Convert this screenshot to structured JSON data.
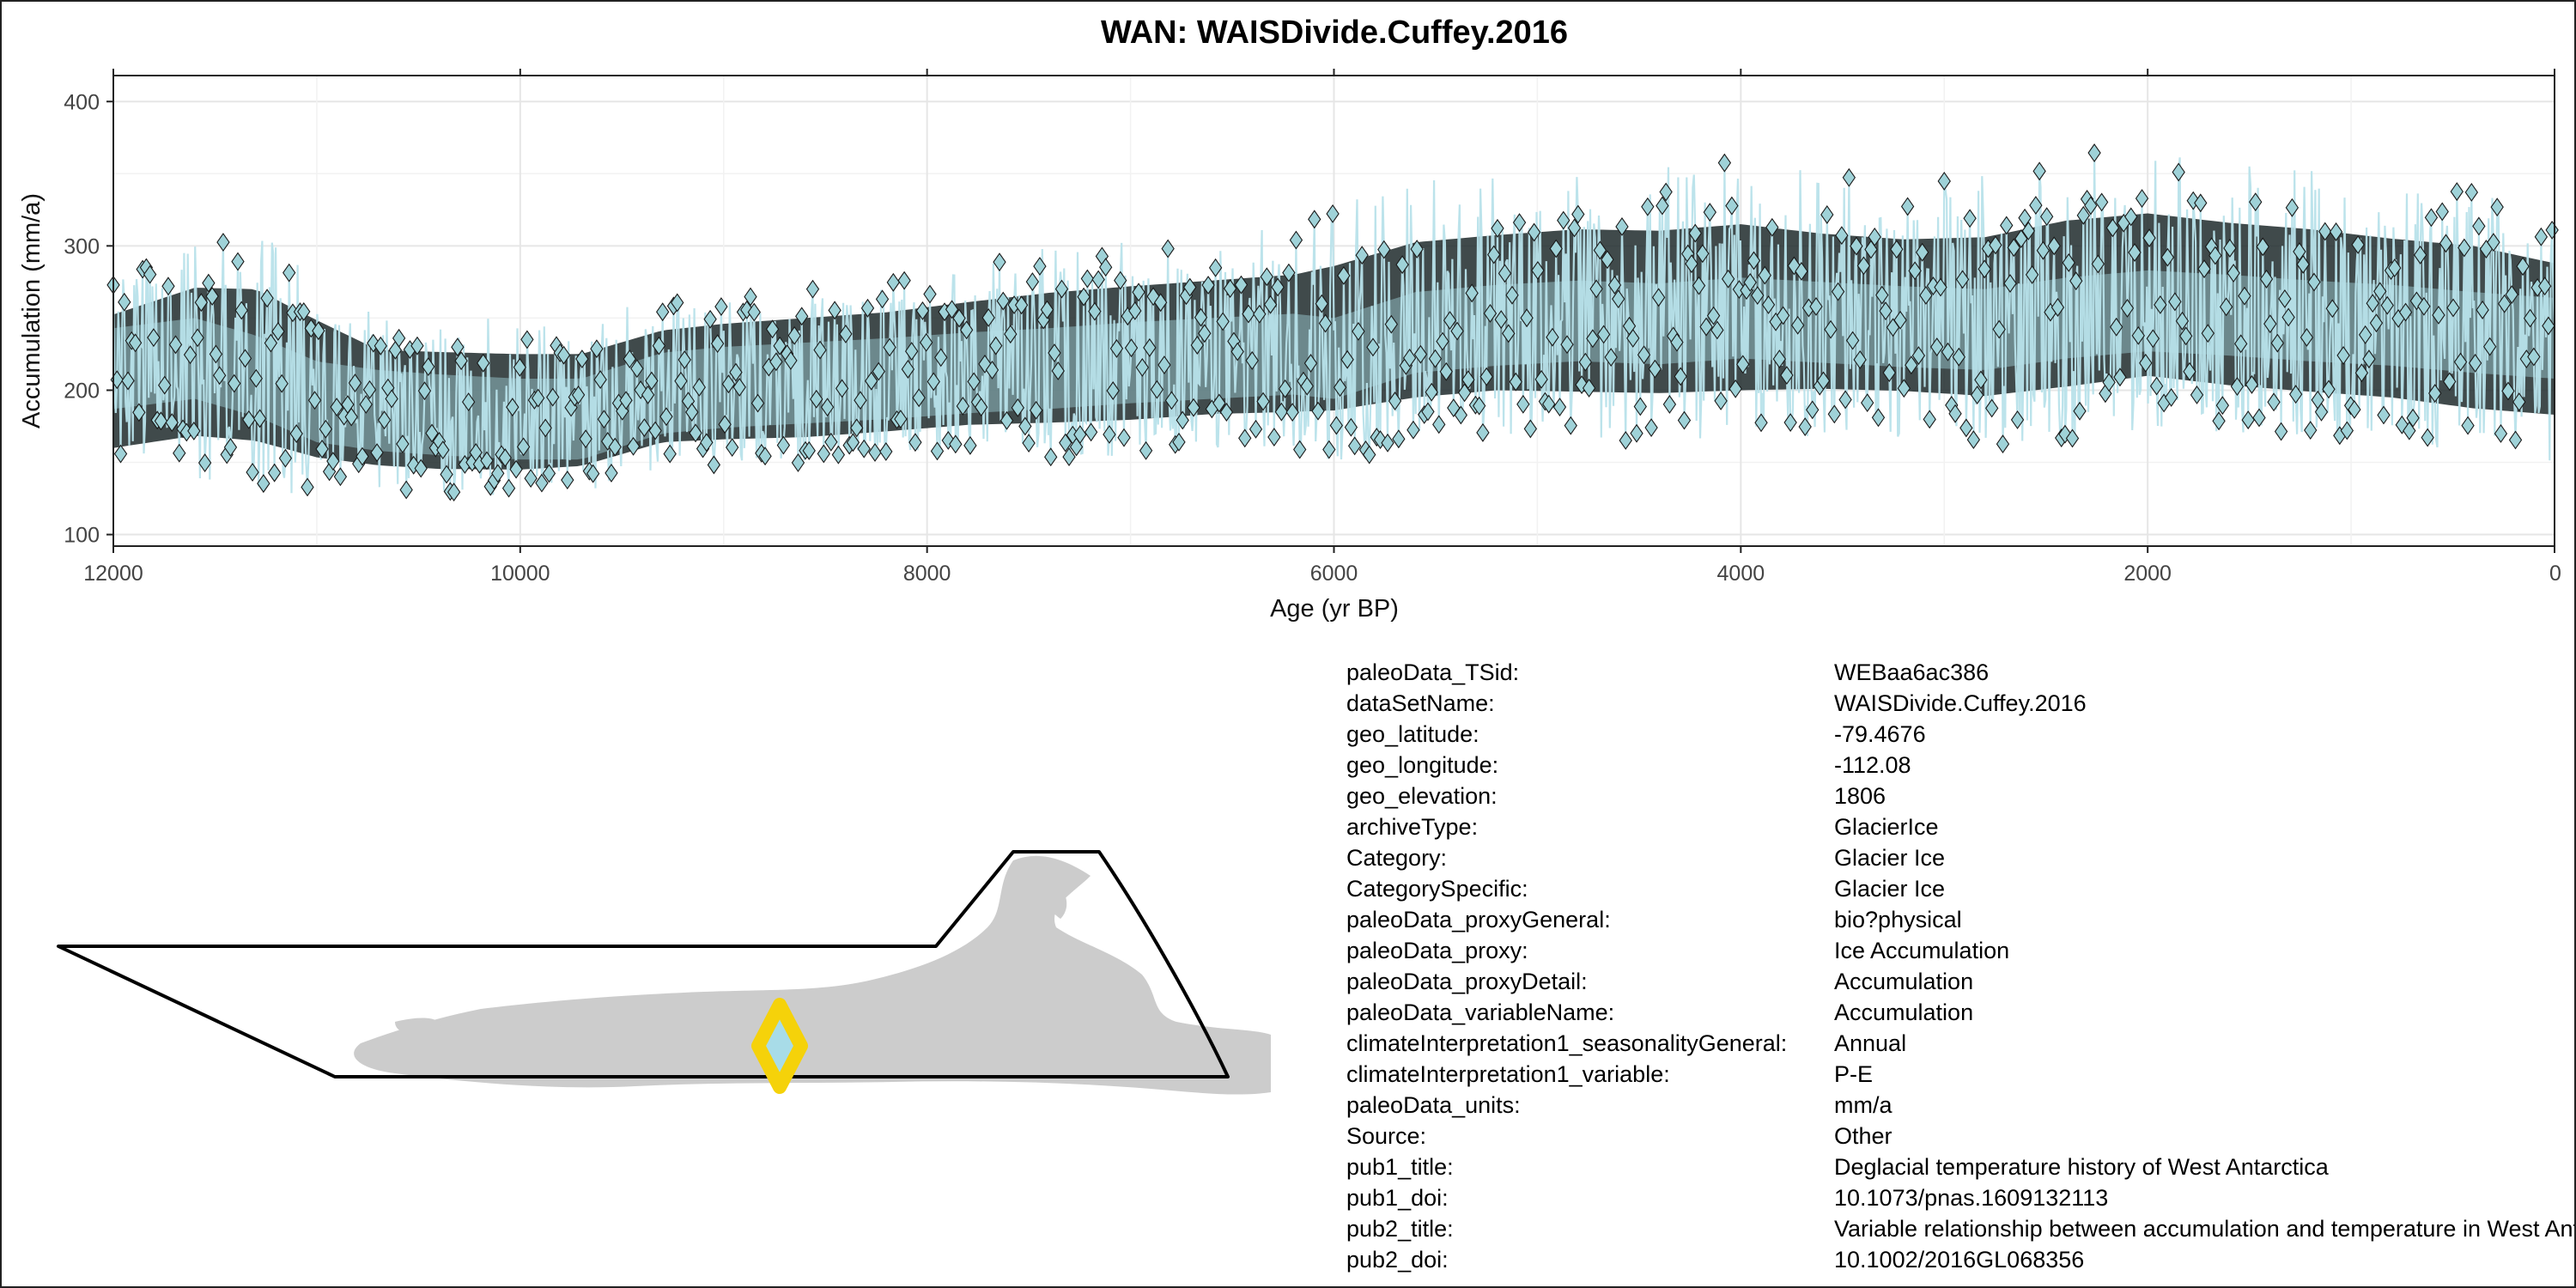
{
  "chart_data": {
    "type": "line",
    "title": "WAN: WAISDivide.Cuffey.2016",
    "xlabel": "Age (yr BP)",
    "ylabel": "Accumulation (mm/a)",
    "xlim": [
      12000,
      0
    ],
    "x_reversed": true,
    "ylim": [
      92,
      418
    ],
    "x_ticks": [
      12000,
      10000,
      8000,
      6000,
      4000,
      2000,
      0
    ],
    "y_ticks": [
      100,
      200,
      300,
      400
    ],
    "grid": true,
    "legend": "none",
    "colors": {
      "line": "#b8e2ea",
      "marker_fill": "#9fd2d8",
      "marker_edge": "#1a1a1a",
      "band": "#8fbcc2"
    },
    "series": [
      {
        "x": [
          12000,
          11600,
          11300,
          11000,
          10700,
          10400,
          10000,
          9700,
          9300,
          9000,
          8600,
          8200,
          7800,
          7400,
          7000,
          6600,
          6200,
          6000,
          5600,
          5200,
          4800,
          4400,
          4000,
          3600,
          3200,
          2800,
          2400,
          2000,
          1600,
          1200,
          800,
          400,
          0
        ],
        "values": [
          215,
          222,
          210,
          192,
          186,
          183,
          180,
          180,
          198,
          202,
          205,
          208,
          212,
          215,
          219,
          222,
          225,
          222,
          240,
          245,
          248,
          246,
          250,
          247,
          244,
          242,
          250,
          255,
          252,
          248,
          245,
          240,
          236
        ]
      }
    ],
    "annotations_min_max": {
      "envelope_low": [
        125,
        135,
        140,
        135,
        130,
        128,
        130,
        135,
        150,
        150,
        150,
        155,
        160,
        160,
        160,
        165,
        165,
        170,
        170,
        175,
        170,
        170,
        170,
        175,
        175,
        170,
        175,
        185,
        175,
        170,
        165,
        155,
        150
      ],
      "envelope_high": [
        270,
        300,
        310,
        285,
        250,
        250,
        250,
        250,
        265,
        270,
        275,
        280,
        290,
        300,
        305,
        310,
        315,
        330,
        345,
        350,
        355,
        355,
        360,
        350,
        345,
        350,
        365,
        370,
        360,
        355,
        345,
        340,
        320
      ]
    }
  },
  "metadata": [
    {
      "key": "paleoData_TSid:",
      "value": "WEBaa6ac386"
    },
    {
      "key": "dataSetName:",
      "value": "WAISDivide.Cuffey.2016"
    },
    {
      "key": "geo_latitude:",
      "value": "-79.4676"
    },
    {
      "key": "geo_longitude:",
      "value": "-112.08"
    },
    {
      "key": "geo_elevation:",
      "value": "1806"
    },
    {
      "key": "archiveType:",
      "value": "GlacierIce"
    },
    {
      "key": "Category:",
      "value": "Glacier Ice"
    },
    {
      "key": "CategorySpecific:",
      "value": "Glacier Ice"
    },
    {
      "key": "paleoData_proxyGeneral:",
      "value": "bio?physical"
    },
    {
      "key": "paleoData_proxy:",
      "value": "Ice Accumulation"
    },
    {
      "key": "paleoData_proxyDetail:",
      "value": "Accumulation"
    },
    {
      "key": "paleoData_variableName:",
      "value": "Accumulation"
    },
    {
      "key": "climateInterpretation1_seasonalityGeneral:",
      "value": "Annual"
    },
    {
      "key": "climateInterpretation1_variable:",
      "value": "P-E"
    },
    {
      "key": "paleoData_units:",
      "value": "mm/a"
    },
    {
      "key": "Source:",
      "value": "Other"
    },
    {
      "key": "pub1_title:",
      "value": "Deglacial temperature history of West Antarctica"
    },
    {
      "key": "pub1_doi:",
      "value": "10.1073/pnas.1609132113"
    },
    {
      "key": "pub2_title:",
      "value": "Variable relationship between accumulation and temperature in West Antarctica"
    },
    {
      "key": "pub2_doi:",
      "value": "10.1002/2016GL068356"
    }
  ],
  "map": {
    "site_marker_color": "#f5d20a",
    "site_marker_fill": "#a8dce8",
    "land_color": "#cccccc",
    "outline_color": "#000000"
  }
}
